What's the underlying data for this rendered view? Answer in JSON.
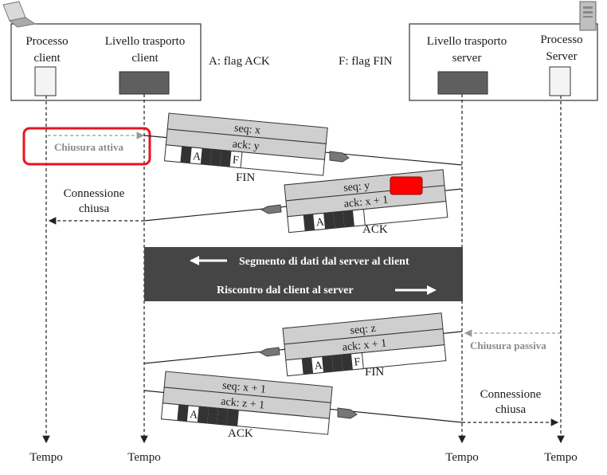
{
  "headers": {
    "client_process": [
      "Processo",
      "client"
    ],
    "client_transport": [
      "Livello trasporto",
      "client"
    ],
    "server_transport": [
      "Livello trasporto",
      "server"
    ],
    "server_process": [
      "Processo",
      "Server"
    ],
    "ack_legend": "A: flag ACK",
    "fin_legend": "F: flag FIN"
  },
  "labels": {
    "active_close": "Chiusura attiva",
    "passive_close": "Chiusura passiva",
    "conn_closed_client": [
      "Connessione",
      "chiusa"
    ],
    "conn_closed_server": [
      "Connessione",
      "chiusa"
    ],
    "time": "Tempo"
  },
  "segments": {
    "s1": {
      "seq": "seq: x",
      "ack": "ack: y",
      "name": "FIN",
      "flag_a": "A",
      "flag_f": "F"
    },
    "s2": {
      "seq": "seq: y",
      "ack": "ack: x + 1",
      "name": "ACK",
      "flag_a": "A"
    },
    "s3": {
      "seq": "seq: z",
      "ack": "ack: x + 1",
      "name": "FIN",
      "flag_a": "A",
      "flag_f": "F"
    },
    "s4": {
      "seq": "seq: x + 1",
      "ack": "ack: z + 1",
      "name": "ACK",
      "flag_a": "A"
    }
  },
  "banner": {
    "line1": "Segmento di dati dal server al client",
    "line2": "Riscontro dal client al server"
  },
  "colors": {
    "highlight_border": "#e8141c",
    "redaction": "#ff0000",
    "banner_bg": "#454545",
    "segment_fill": "#cfcfcf"
  }
}
